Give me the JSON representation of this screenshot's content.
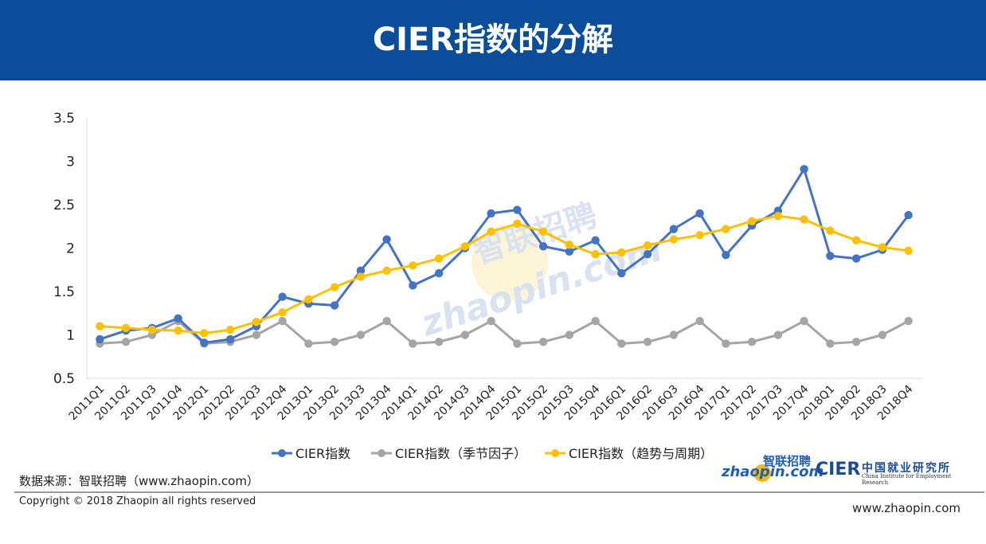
{
  "header": {
    "title": "CIER指数的分解",
    "bg_color": "#0b4d99"
  },
  "chart_data": {
    "type": "line",
    "categories": [
      "2011Q1",
      "2011Q2",
      "2011Q3",
      "2011Q4",
      "2012Q1",
      "2012Q2",
      "2012Q3",
      "2012Q4",
      "2013Q1",
      "2013Q2",
      "2013Q3",
      "2013Q4",
      "2014Q1",
      "2014Q2",
      "2014Q3",
      "2014Q4",
      "2015Q1",
      "2015Q2",
      "2015Q3",
      "2015Q4",
      "2016Q1",
      "2016Q2",
      "2016Q3",
      "2016Q4",
      "2017Q1",
      "2017Q2",
      "2017Q3",
      "2017Q4",
      "2018Q1",
      "2018Q2",
      "2018Q3",
      "2018Q4"
    ],
    "series": [
      {
        "name": "CIER指数",
        "color": "#4472c4",
        "values": [
          0.95,
          1.05,
          1.08,
          1.19,
          0.91,
          0.95,
          1.1,
          1.44,
          1.36,
          1.34,
          1.74,
          2.1,
          1.57,
          1.71,
          2.0,
          2.4,
          2.44,
          2.02,
          1.96,
          2.09,
          1.71,
          1.93,
          2.22,
          2.4,
          1.92,
          2.26,
          2.43,
          2.91,
          1.91,
          1.88,
          1.98,
          2.38
        ]
      },
      {
        "name": "CIER指数（季节因子）",
        "color": "#a5a5a5",
        "values": [
          0.9,
          0.92,
          1.0,
          1.16,
          0.9,
          0.92,
          1.0,
          1.16,
          0.9,
          0.92,
          1.0,
          1.16,
          0.9,
          0.92,
          1.0,
          1.16,
          0.9,
          0.92,
          1.0,
          1.16,
          0.9,
          0.92,
          1.0,
          1.16,
          0.9,
          0.92,
          1.0,
          1.16,
          0.9,
          0.92,
          1.0,
          1.16
        ]
      },
      {
        "name": "CIER指数（趋势与周期）",
        "color": "#ffc000",
        "values": [
          1.1,
          1.08,
          1.06,
          1.05,
          1.02,
          1.06,
          1.15,
          1.26,
          1.41,
          1.55,
          1.67,
          1.74,
          1.8,
          1.88,
          2.02,
          2.19,
          2.28,
          2.19,
          2.04,
          1.93,
          1.95,
          2.03,
          2.1,
          2.15,
          2.22,
          2.31,
          2.37,
          2.33,
          2.2,
          2.09,
          2.01,
          1.97
        ]
      }
    ],
    "ylim": [
      0.5,
      3.5
    ],
    "yticks": [
      "0.5",
      "1",
      "1.5",
      "2",
      "2.5",
      "3",
      "3.5"
    ],
    "grid": false,
    "legend": "bottom"
  },
  "watermark": {
    "text": "智联招聘 zhaopin.com"
  },
  "footer": {
    "source": "数据来源：智联招聘（www.zhaopin.com）",
    "copyright": "Copyright © 2018 Zhaopin all rights reserved",
    "website": "www.zhaopin.com"
  },
  "logos": {
    "zhaopin_top": "智联招聘",
    "zhaopin_main": "zhaopin.com",
    "cier_name": "CIER",
    "cier_cn": "中国就业研究所",
    "cier_en": "China Institute for Employment Research"
  }
}
